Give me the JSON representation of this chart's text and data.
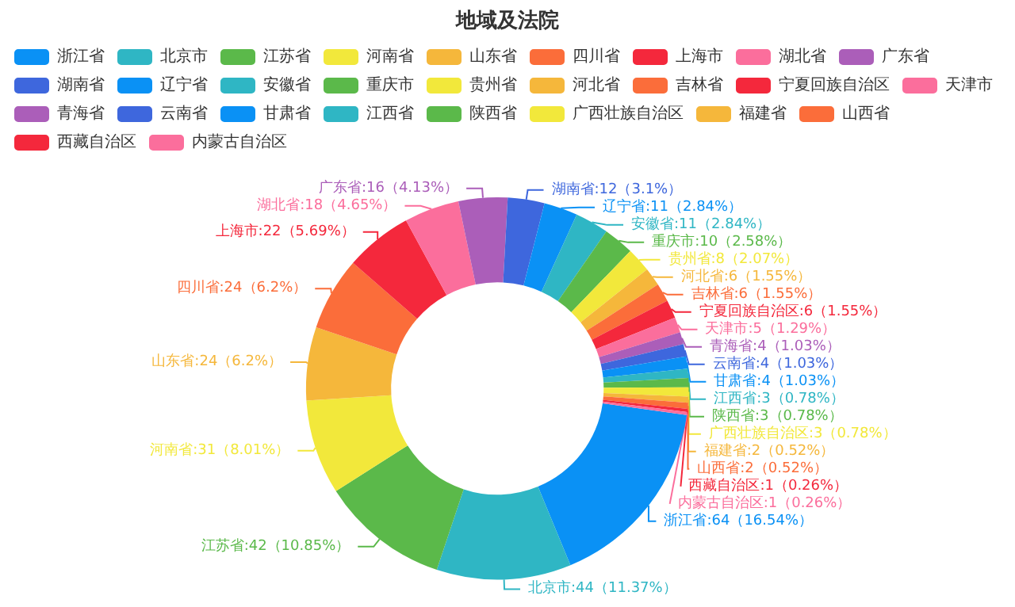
{
  "chart_data": {
    "type": "donut",
    "title": "地域及法院",
    "legend": "top",
    "categories": [
      "浙江省",
      "北京市",
      "江苏省",
      "河南省",
      "山东省",
      "四川省",
      "上海市",
      "湖北省",
      "广东省",
      "湖南省",
      "辽宁省",
      "安徽省",
      "重庆市",
      "贵州省",
      "河北省",
      "吉林省",
      "宁夏回族自治区",
      "天津市",
      "青海省",
      "云南省",
      "甘肃省",
      "江西省",
      "陕西省",
      "广西壮族自治区",
      "福建省",
      "山西省",
      "西藏自治区",
      "内蒙古自治区"
    ],
    "values": [
      64,
      44,
      42,
      31,
      24,
      24,
      22,
      18,
      16,
      12,
      11,
      11,
      10,
      8,
      6,
      6,
      6,
      5,
      4,
      4,
      4,
      3,
      3,
      3,
      2,
      2,
      1,
      1
    ],
    "value_labels": [
      "浙江省:64（16.54%）",
      "北京市:44（11.37%）",
      "江苏省:42（10.85%）",
      "河南省:31（8.01%）",
      "山东省:24（6.2%）",
      "四川省:24（6.2%）",
      "上海市:22（5.69%）",
      "湖北省:18（4.65%）",
      "广东省:16（4.13%）",
      "湖南省:12（3.1%）",
      "辽宁省:11（2.84%）",
      "安徽省:11（2.84%）",
      "重庆市:10（2.58%）",
      "贵州省:8（2.07%）",
      "河北省:6（1.55%）",
      "吉林省:6（1.55%）",
      "宁夏回族自治区:6（1.55%）",
      "天津市:5（1.29%）",
      "青海省:4（1.03%）",
      "云南省:4（1.03%）",
      "甘肃省:4（1.03%）",
      "江西省:3（0.78%）",
      "陕西省:3（0.78%）",
      "广西壮族自治区:3（0.78%）",
      "福建省:2（0.52%）",
      "山西省:2（0.52%）",
      "西藏自治区:1（0.26%）",
      "内蒙古自治区:1（0.26%）"
    ],
    "colors": [
      "#0a91f5",
      "#2fb6c4",
      "#5bb94a",
      "#f2e83b",
      "#f5b73b",
      "#fb6d3a",
      "#f4283c",
      "#fb6e9c",
      "#ab5eb9",
      "#3e67dd",
      "#0a91f5",
      "#2fb6c4",
      "#5bb94a",
      "#f2e83b",
      "#f5b73b",
      "#fb6d3a",
      "#f4283c",
      "#fb6e9c",
      "#ab5eb9",
      "#3e67dd",
      "#0a91f5",
      "#2fb6c4",
      "#5bb94a",
      "#f2e83b",
      "#f5b73b",
      "#fb6d3a",
      "#f4283c",
      "#fb6e9c"
    ]
  }
}
